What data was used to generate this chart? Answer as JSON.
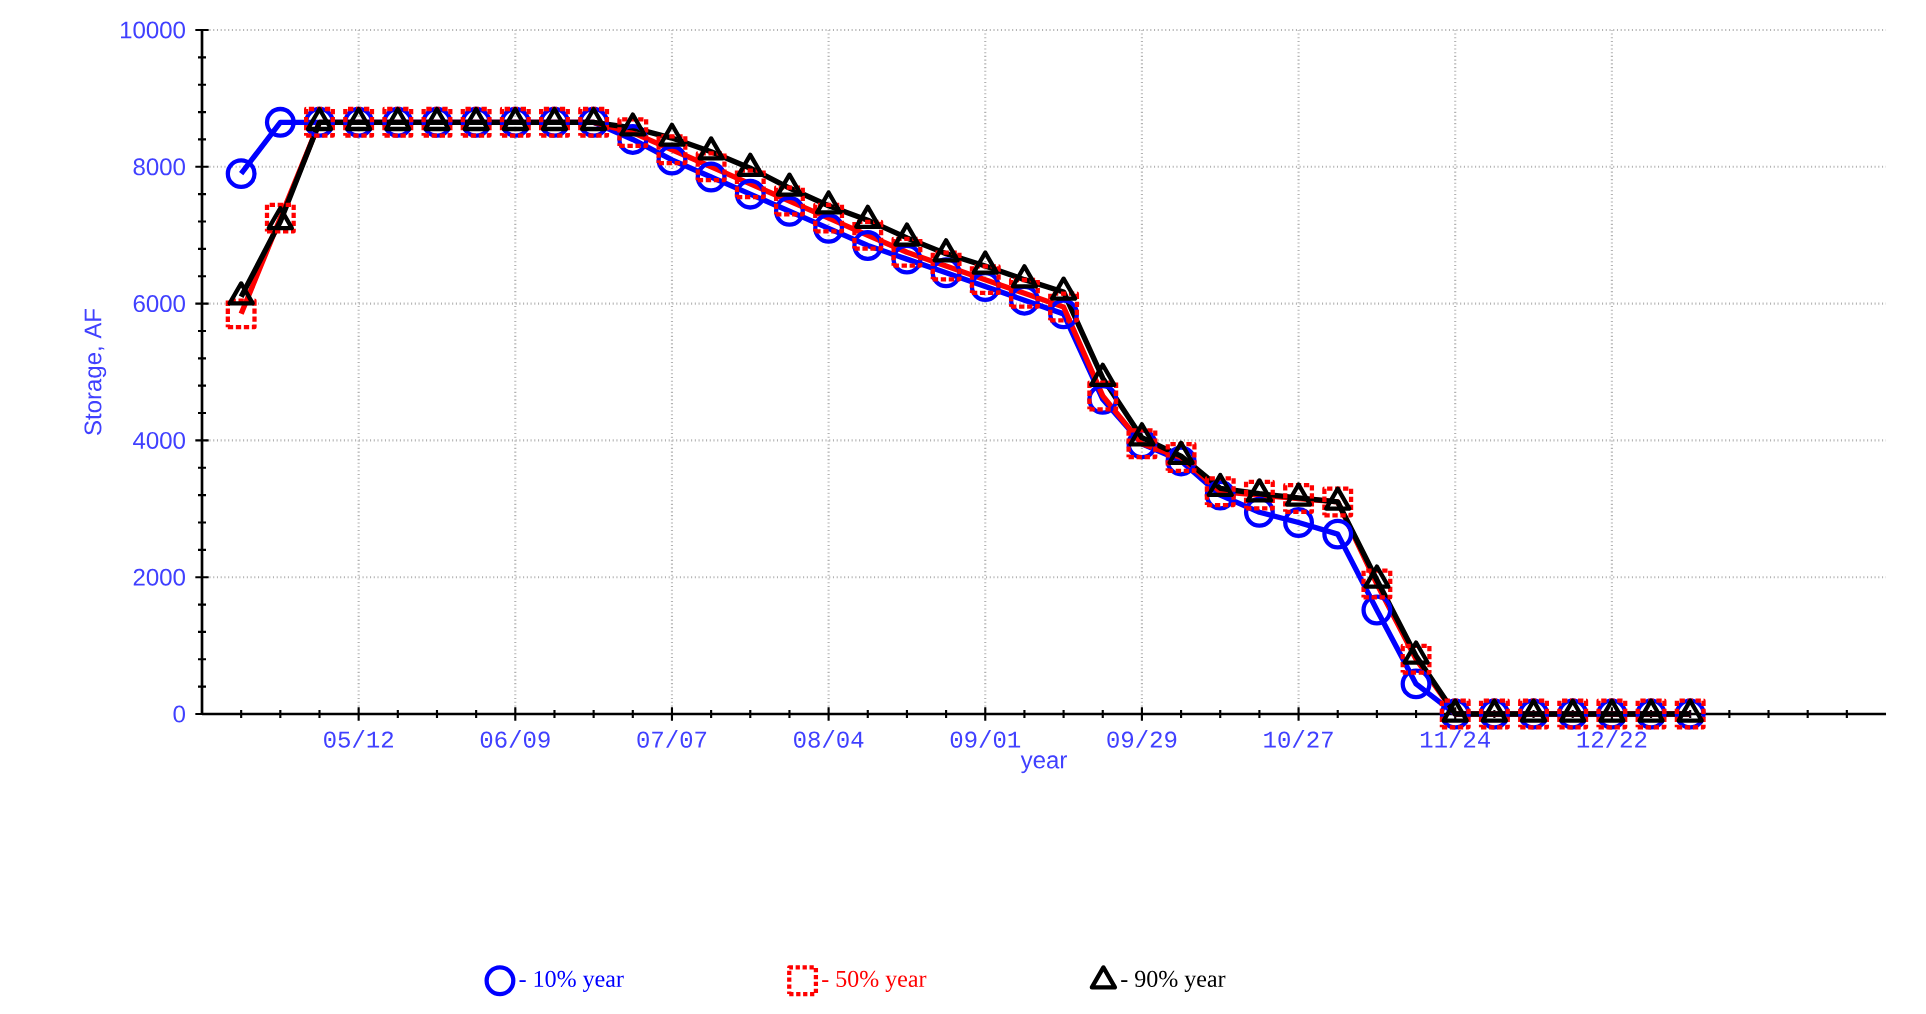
{
  "chart_data": {
    "type": "line",
    "xlabel": "year",
    "ylabel": "Storage, AF",
    "categories": [
      null,
      null,
      null,
      "05/12",
      null,
      null,
      null,
      "06/09",
      null,
      null,
      null,
      "07/07",
      null,
      null,
      null,
      "08/04",
      null,
      null,
      null,
      "09/01",
      null,
      null,
      null,
      "09/29",
      null,
      null,
      null,
      "10/27",
      null,
      null,
      null,
      "11/24",
      null,
      null,
      null,
      "12/22",
      null,
      null,
      null,
      null,
      null,
      null
    ],
    "series": [
      {
        "name": "- 10% year",
        "color": "#0000ff",
        "marker": "circle",
        "values": [
          7900,
          8650,
          8650,
          8650,
          8650,
          8650,
          8650,
          8650,
          8650,
          8650,
          8400,
          8100,
          7850,
          7600,
          7350,
          7100,
          6850,
          6650,
          6450,
          6250,
          6050,
          5850,
          4600,
          3950,
          3700,
          3200,
          2950,
          2800,
          2630,
          1520,
          440,
          0,
          0,
          0,
          0,
          0,
          0,
          0,
          null,
          null,
          null,
          null
        ]
      },
      {
        "name": "- 50% year",
        "color": "#ff0000",
        "marker": "square",
        "values": [
          5850,
          7250,
          8650,
          8650,
          8650,
          8650,
          8650,
          8650,
          8650,
          8650,
          8500,
          8250,
          8000,
          7750,
          7500,
          7250,
          7000,
          6750,
          6550,
          6350,
          6150,
          5950,
          4650,
          3950,
          3750,
          3250,
          3200,
          3150,
          3100,
          1900,
          800,
          0,
          0,
          0,
          0,
          0,
          0,
          0,
          null,
          null,
          null,
          null
        ]
      },
      {
        "name": "- 90% year",
        "color": "#000000",
        "marker": "triangle",
        "values": [
          6100,
          7200,
          8650,
          8650,
          8650,
          8650,
          8650,
          8650,
          8650,
          8650,
          8570,
          8420,
          8220,
          7980,
          7690,
          7430,
          7220,
          6960,
          6730,
          6550,
          6350,
          6170,
          4910,
          4040,
          3770,
          3300,
          3220,
          3160,
          3100,
          1960,
          850,
          0,
          0,
          0,
          0,
          0,
          0,
          0,
          null,
          null,
          null,
          null
        ]
      }
    ],
    "ylim": [
      0,
      10000
    ],
    "yticks": [
      0,
      2000,
      4000,
      6000,
      8000,
      10000
    ],
    "grid": true,
    "legend": "bottom",
    "line_style": "solid"
  }
}
